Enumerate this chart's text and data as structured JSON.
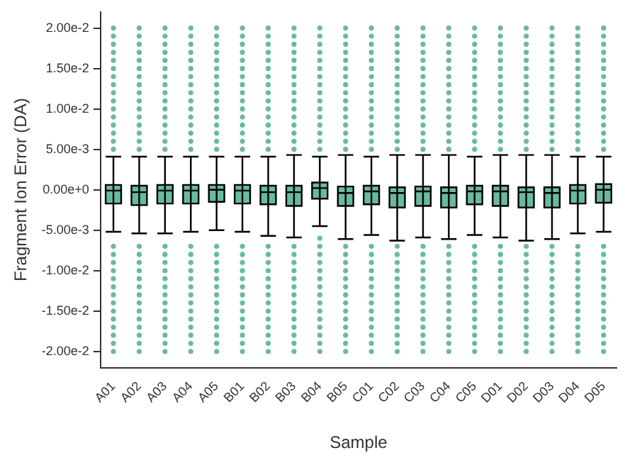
{
  "chart_data": {
    "type": "box",
    "xlabel": "Sample",
    "ylabel": "Fragment Ion Error (DA)",
    "color": "#69b9a0",
    "legend": false,
    "grid": false,
    "categories": [
      "A01",
      "A02",
      "A03",
      "A04",
      "A05",
      "B01",
      "B02",
      "B03",
      "B04",
      "B05",
      "C01",
      "C02",
      "C03",
      "C04",
      "C05",
      "D01",
      "D02",
      "D03",
      "D04",
      "D05"
    ],
    "ylim": [
      -0.022,
      0.022
    ],
    "yticks": [
      {
        "value": -0.02,
        "label": "-2.00e-2"
      },
      {
        "value": -0.015,
        "label": "-1.50e-2"
      },
      {
        "value": -0.01,
        "label": "-1.00e-2"
      },
      {
        "value": -0.005,
        "label": "-5.00e-3"
      },
      {
        "value": 0,
        "label": "0.00e+0"
      },
      {
        "value": 0.005,
        "label": "5.00e-3"
      },
      {
        "value": 0.01,
        "label": "1.00e-2"
      },
      {
        "value": 0.015,
        "label": "1.50e-2"
      },
      {
        "value": 0.02,
        "label": "2.00e-2"
      }
    ],
    "boxes": [
      {
        "low": -0.0052,
        "q1": -0.0017,
        "median": -0.0001,
        "q3": 0.0006,
        "high": 0.0041,
        "outliers": [
          -0.02,
          -0.019,
          -0.018,
          -0.017,
          -0.016,
          -0.015,
          -0.014,
          -0.013,
          -0.012,
          -0.011,
          -0.01,
          -0.009,
          -0.008,
          -0.007,
          0.005,
          0.006,
          0.007,
          0.008,
          0.009,
          0.01,
          0.011,
          0.012,
          0.013,
          0.014,
          0.015,
          0.016,
          0.017,
          0.018,
          0.019,
          0.02
        ]
      },
      {
        "low": -0.0054,
        "q1": -0.0019,
        "median": -0.0003,
        "q3": 0.0005,
        "high": 0.0041,
        "outliers": [
          -0.02,
          -0.019,
          -0.018,
          -0.017,
          -0.016,
          -0.015,
          -0.014,
          -0.013,
          -0.012,
          -0.011,
          -0.01,
          -0.009,
          -0.008,
          -0.007,
          0.005,
          0.006,
          0.007,
          0.008,
          0.009,
          0.01,
          0.011,
          0.012,
          0.013,
          0.014,
          0.015,
          0.016,
          0.017,
          0.018,
          0.019,
          0.02
        ]
      },
      {
        "low": -0.0054,
        "q1": -0.0017,
        "median": -0.0001,
        "q3": 0.0006,
        "high": 0.0041,
        "outliers": [
          -0.02,
          -0.019,
          -0.018,
          -0.017,
          -0.016,
          -0.015,
          -0.014,
          -0.013,
          -0.012,
          -0.011,
          -0.01,
          -0.009,
          -0.008,
          -0.007,
          0.005,
          0.006,
          0.007,
          0.008,
          0.009,
          0.01,
          0.011,
          0.012,
          0.013,
          0.014,
          0.015,
          0.016,
          0.017,
          0.018,
          0.019,
          0.02
        ]
      },
      {
        "low": -0.0052,
        "q1": -0.0017,
        "median": -0.0001,
        "q3": 0.0006,
        "high": 0.0041,
        "outliers": [
          -0.02,
          -0.019,
          -0.018,
          -0.017,
          -0.016,
          -0.015,
          -0.014,
          -0.013,
          -0.012,
          -0.011,
          -0.01,
          -0.009,
          -0.008,
          -0.007,
          0.005,
          0.006,
          0.007,
          0.008,
          0.009,
          0.01,
          0.011,
          0.012,
          0.013,
          0.014,
          0.015,
          0.016,
          0.017,
          0.018,
          0.019,
          0.02
        ]
      },
      {
        "low": -0.005,
        "q1": -0.0015,
        "median": 0,
        "q3": 0.0006,
        "high": 0.0041,
        "outliers": [
          -0.02,
          -0.019,
          -0.018,
          -0.017,
          -0.016,
          -0.015,
          -0.014,
          -0.013,
          -0.012,
          -0.011,
          -0.01,
          -0.009,
          -0.008,
          -0.007,
          0.005,
          0.006,
          0.007,
          0.008,
          0.009,
          0.01,
          0.011,
          0.012,
          0.013,
          0.014,
          0.015,
          0.016,
          0.017,
          0.018,
          0.019,
          0.02
        ]
      },
      {
        "low": -0.0052,
        "q1": -0.0017,
        "median": -0.0001,
        "q3": 0.0006,
        "high": 0.0041,
        "outliers": [
          -0.02,
          -0.019,
          -0.018,
          -0.017,
          -0.016,
          -0.015,
          -0.014,
          -0.013,
          -0.012,
          -0.011,
          -0.01,
          -0.009,
          -0.008,
          -0.007,
          0.005,
          0.006,
          0.007,
          0.008,
          0.009,
          0.01,
          0.011,
          0.012,
          0.013,
          0.014,
          0.015,
          0.016,
          0.017,
          0.018,
          0.019,
          0.02
        ]
      },
      {
        "low": -0.0057,
        "q1": -0.0018,
        "median": -0.0003,
        "q3": 0.0005,
        "high": 0.0041,
        "outliers": [
          -0.02,
          -0.019,
          -0.018,
          -0.017,
          -0.016,
          -0.015,
          -0.014,
          -0.013,
          -0.012,
          -0.011,
          -0.01,
          -0.009,
          -0.008,
          -0.007,
          0.005,
          0.006,
          0.007,
          0.008,
          0.009,
          0.01,
          0.011,
          0.012,
          0.013,
          0.014,
          0.015,
          0.016,
          0.017,
          0.018,
          0.019,
          0.02
        ]
      },
      {
        "low": -0.0059,
        "q1": -0.002,
        "median": -0.0003,
        "q3": 0.0005,
        "high": 0.0043,
        "outliers": [
          -0.02,
          -0.019,
          -0.018,
          -0.017,
          -0.016,
          -0.015,
          -0.014,
          -0.013,
          -0.012,
          -0.011,
          -0.01,
          -0.009,
          -0.008,
          -0.007,
          0.005,
          0.006,
          0.007,
          0.008,
          0.009,
          0.01,
          0.011,
          0.012,
          0.013,
          0.014,
          0.015,
          0.016,
          0.017,
          0.018,
          0.019,
          0.02
        ]
      },
      {
        "low": -0.0045,
        "q1": -0.0011,
        "median": 0.0002,
        "q3": 0.0009,
        "high": 0.0041,
        "outliers": [
          -0.02,
          -0.019,
          -0.018,
          -0.017,
          -0.016,
          -0.015,
          -0.014,
          -0.013,
          -0.012,
          -0.011,
          -0.01,
          -0.009,
          -0.008,
          -0.007,
          -0.006,
          0.005,
          0.006,
          0.007,
          0.008,
          0.009,
          0.01,
          0.011,
          0.012,
          0.013,
          0.014,
          0.015,
          0.016,
          0.017,
          0.018,
          0.019,
          0.02
        ]
      },
      {
        "low": -0.0061,
        "q1": -0.002,
        "median": -0.0004,
        "q3": 0.0004,
        "high": 0.0043,
        "outliers": [
          -0.02,
          -0.019,
          -0.018,
          -0.017,
          -0.016,
          -0.015,
          -0.014,
          -0.013,
          -0.012,
          -0.011,
          -0.01,
          -0.009,
          -0.008,
          -0.007,
          0.005,
          0.006,
          0.007,
          0.008,
          0.009,
          0.01,
          0.011,
          0.012,
          0.013,
          0.014,
          0.015,
          0.016,
          0.017,
          0.018,
          0.019,
          0.02
        ]
      },
      {
        "low": -0.0056,
        "q1": -0.0018,
        "median": -0.0002,
        "q3": 0.0005,
        "high": 0.0041,
        "outliers": [
          -0.02,
          -0.019,
          -0.018,
          -0.017,
          -0.016,
          -0.015,
          -0.014,
          -0.013,
          -0.012,
          -0.011,
          -0.01,
          -0.009,
          -0.008,
          -0.007,
          0.005,
          0.006,
          0.007,
          0.008,
          0.009,
          0.01,
          0.011,
          0.012,
          0.013,
          0.014,
          0.015,
          0.016,
          0.017,
          0.018,
          0.019,
          0.02
        ]
      },
      {
        "low": -0.0063,
        "q1": -0.0022,
        "median": -0.0004,
        "q3": 0.0003,
        "high": 0.0043,
        "outliers": [
          -0.02,
          -0.019,
          -0.018,
          -0.017,
          -0.016,
          -0.015,
          -0.014,
          -0.013,
          -0.012,
          -0.011,
          -0.01,
          -0.009,
          -0.008,
          -0.007,
          0.005,
          0.006,
          0.007,
          0.008,
          0.009,
          0.01,
          0.011,
          0.012,
          0.013,
          0.014,
          0.015,
          0.016,
          0.017,
          0.018,
          0.019,
          0.02
        ]
      },
      {
        "low": -0.0059,
        "q1": -0.002,
        "median": -0.0002,
        "q3": 0.0004,
        "high": 0.0043,
        "outliers": [
          -0.02,
          -0.019,
          -0.018,
          -0.017,
          -0.016,
          -0.015,
          -0.014,
          -0.013,
          -0.012,
          -0.011,
          -0.01,
          -0.009,
          -0.008,
          -0.007,
          0.005,
          0.006,
          0.007,
          0.008,
          0.009,
          0.01,
          0.011,
          0.012,
          0.013,
          0.014,
          0.015,
          0.016,
          0.017,
          0.018,
          0.019,
          0.02
        ]
      },
      {
        "low": -0.0061,
        "q1": -0.0022,
        "median": -0.0004,
        "q3": 0.0003,
        "high": 0.0043,
        "outliers": [
          -0.02,
          -0.019,
          -0.018,
          -0.017,
          -0.016,
          -0.015,
          -0.014,
          -0.013,
          -0.012,
          -0.011,
          -0.01,
          -0.009,
          -0.008,
          -0.007,
          0.005,
          0.006,
          0.007,
          0.008,
          0.009,
          0.01,
          0.011,
          0.012,
          0.013,
          0.014,
          0.015,
          0.016,
          0.017,
          0.018,
          0.019,
          0.02
        ]
      },
      {
        "low": -0.0056,
        "q1": -0.0018,
        "median": -0.0002,
        "q3": 0.0005,
        "high": 0.0041,
        "outliers": [
          -0.02,
          -0.019,
          -0.018,
          -0.017,
          -0.016,
          -0.015,
          -0.014,
          -0.013,
          -0.012,
          -0.011,
          -0.01,
          -0.009,
          -0.008,
          -0.007,
          0.005,
          0.006,
          0.007,
          0.008,
          0.009,
          0.01,
          0.011,
          0.012,
          0.013,
          0.014,
          0.015,
          0.016,
          0.017,
          0.018,
          0.019,
          0.02
        ]
      },
      {
        "low": -0.0059,
        "q1": -0.002,
        "median": -0.0002,
        "q3": 0.0005,
        "high": 0.0043,
        "outliers": [
          -0.02,
          -0.019,
          -0.018,
          -0.017,
          -0.016,
          -0.015,
          -0.014,
          -0.013,
          -0.012,
          -0.011,
          -0.01,
          -0.009,
          -0.008,
          -0.007,
          0.005,
          0.006,
          0.007,
          0.008,
          0.009,
          0.01,
          0.011,
          0.012,
          0.013,
          0.014,
          0.015,
          0.016,
          0.017,
          0.018,
          0.019,
          0.02
        ]
      },
      {
        "low": -0.0063,
        "q1": -0.0022,
        "median": -0.0003,
        "q3": 0.0003,
        "high": 0.0043,
        "outliers": [
          -0.02,
          -0.019,
          -0.018,
          -0.017,
          -0.016,
          -0.015,
          -0.014,
          -0.013,
          -0.012,
          -0.011,
          -0.01,
          -0.009,
          -0.008,
          -0.007,
          0.005,
          0.006,
          0.007,
          0.008,
          0.009,
          0.01,
          0.011,
          0.012,
          0.013,
          0.014,
          0.015,
          0.016,
          0.017,
          0.018,
          0.019,
          0.02
        ]
      },
      {
        "low": -0.0061,
        "q1": -0.0022,
        "median": -0.0004,
        "q3": 0.0003,
        "high": 0.0043,
        "outliers": [
          -0.02,
          -0.019,
          -0.018,
          -0.017,
          -0.016,
          -0.015,
          -0.014,
          -0.013,
          -0.012,
          -0.011,
          -0.01,
          -0.009,
          -0.008,
          -0.007,
          0.005,
          0.006,
          0.007,
          0.008,
          0.009,
          0.01,
          0.011,
          0.012,
          0.013,
          0.014,
          0.015,
          0.016,
          0.017,
          0.018,
          0.019,
          0.02
        ]
      },
      {
        "low": -0.0054,
        "q1": -0.0017,
        "median": -0.0001,
        "q3": 0.0006,
        "high": 0.0041,
        "outliers": [
          -0.02,
          -0.019,
          -0.018,
          -0.017,
          -0.016,
          -0.015,
          -0.014,
          -0.013,
          -0.012,
          -0.011,
          -0.01,
          -0.009,
          -0.008,
          -0.007,
          0.005,
          0.006,
          0.007,
          0.008,
          0.009,
          0.01,
          0.011,
          0.012,
          0.013,
          0.014,
          0.015,
          0.016,
          0.017,
          0.018,
          0.019,
          0.02
        ]
      },
      {
        "low": -0.0052,
        "q1": -0.0016,
        "median": 0,
        "q3": 0.0007,
        "high": 0.0041,
        "outliers": [
          -0.02,
          -0.019,
          -0.018,
          -0.017,
          -0.016,
          -0.015,
          -0.014,
          -0.013,
          -0.012,
          -0.011,
          -0.01,
          -0.009,
          -0.008,
          -0.007,
          0.005,
          0.006,
          0.007,
          0.008,
          0.009,
          0.01,
          0.011,
          0.012,
          0.013,
          0.014,
          0.015,
          0.016,
          0.017,
          0.018,
          0.019,
          0.02
        ]
      }
    ]
  }
}
